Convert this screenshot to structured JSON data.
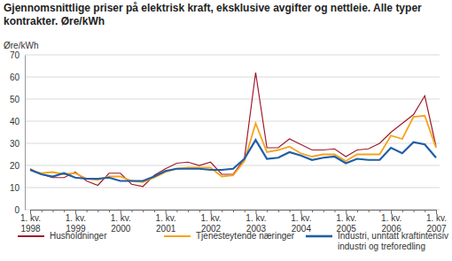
{
  "chart_data": {
    "type": "line",
    "title": "Gjennomsnittlige priser på elektrisk kraft, eksklusive avgifter og nettleie. Alle typer kontrakter. Øre/kWh",
    "y_label": "Øre/kWh",
    "categories": [
      "1. kv. 1998",
      null,
      null,
      null,
      "1. kv. 1999",
      null,
      null,
      null,
      "1. kv. 2000",
      null,
      null,
      null,
      "1. kv. 2001",
      null,
      null,
      null,
      "1. kv. 2002",
      null,
      null,
      null,
      "1. kv. 2003",
      null,
      null,
      null,
      "1. kv. 2004",
      null,
      null,
      null,
      "1. kv. 2005",
      null,
      null,
      null,
      "1. kv. 2006",
      null,
      null,
      null,
      "1. kv. 2007"
    ],
    "series": [
      {
        "name": "Husholdninger",
        "color": "#9e1a2c",
        "values": [
          18.5,
          16,
          14.5,
          14.5,
          17,
          13,
          11,
          16.5,
          16.5,
          11.5,
          10.5,
          15.5,
          18.5,
          21,
          21.5,
          20,
          21.5,
          16,
          16,
          23,
          62,
          28,
          28,
          32,
          29.5,
          27,
          27,
          27.5,
          24,
          27,
          27.5,
          30,
          35,
          39,
          43,
          51.5,
          28.5
        ]
      },
      {
        "name": "Tjenesteytende næringer",
        "color": "#f5a31a",
        "values": [
          18,
          16.5,
          17,
          16,
          16.5,
          14,
          13.5,
          15,
          15,
          13,
          12.5,
          14.5,
          17,
          18.5,
          19,
          19,
          19,
          15,
          15.5,
          22,
          39,
          26,
          27,
          28.5,
          25.5,
          24,
          25,
          25,
          22,
          25,
          25,
          25,
          33.5,
          32,
          42,
          42.5,
          28
        ]
      },
      {
        "name": "Industri, unntatt kraftintensiv industri og treforedling",
        "color": "#1f5ea8",
        "values": [
          18,
          16,
          15,
          16.5,
          14.5,
          14,
          14,
          14.5,
          13,
          13,
          13,
          15,
          17.5,
          18.5,
          18.5,
          18.5,
          18,
          18,
          18.5,
          23,
          31.5,
          23,
          23.5,
          26,
          24.5,
          22.5,
          23.5,
          24,
          21,
          23,
          22.5,
          22.5,
          28,
          25.5,
          30.5,
          29.5,
          23.5
        ]
      }
    ],
    "ylim": [
      0,
      70
    ],
    "yticks": [
      0,
      10,
      20,
      30,
      40,
      50,
      60,
      70
    ],
    "grid": true,
    "legend": "bottom"
  }
}
